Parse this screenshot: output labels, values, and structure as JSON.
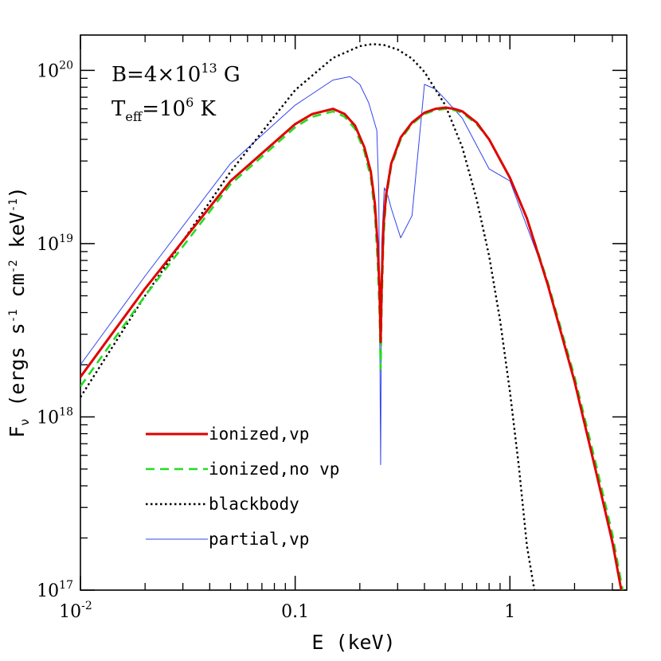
{
  "chart_data": {
    "type": "line",
    "xscale": "log",
    "yscale": "log",
    "xlim": [
      0.01,
      3.5
    ],
    "ylim": [
      1e+17,
      1.6e+20
    ],
    "xlabel": "E (keV)",
    "ylabel": {
      "main": "F",
      "sub": "ν",
      "units_open": " (ergs s",
      "exp1": "-1",
      "mid": " cm",
      "exp2": "-2",
      "mid2": " keV",
      "exp3": "-1",
      "close": ")"
    },
    "x_ticks": [
      {
        "value": 0.01,
        "label": "10",
        "exp": "-2"
      },
      {
        "value": 0.1,
        "label": "0.1",
        "exp": ""
      },
      {
        "value": 1,
        "label": "1",
        "exp": ""
      }
    ],
    "y_ticks": [
      {
        "value": 1e+17,
        "label": "10",
        "exp": "17"
      },
      {
        "value": 1e+18,
        "label": "10",
        "exp": "18"
      },
      {
        "value": 1e+19,
        "label": "10",
        "exp": "19"
      },
      {
        "value": 1e+20,
        "label": "10",
        "exp": "20"
      }
    ],
    "annotations": {
      "field": {
        "pre": "B=4×10",
        "exp": "13",
        "post": " G"
      },
      "teff": {
        "pre": "T",
        "sub": "eff",
        "mid": "=10",
        "exp": "6",
        "post": " K"
      }
    },
    "series": [
      {
        "name": "ionized,vp",
        "color": "#e00000",
        "style": "solid-thick",
        "x": [
          0.01,
          0.02,
          0.05,
          0.1,
          0.12,
          0.15,
          0.17,
          0.19,
          0.21,
          0.225,
          0.235,
          0.242,
          0.247,
          0.25,
          0.253,
          0.258,
          0.265,
          0.28,
          0.31,
          0.35,
          0.4,
          0.45,
          0.5,
          0.55,
          0.6,
          0.7,
          0.8,
          1.0,
          1.2,
          1.5,
          2.0,
          2.5,
          3.0,
          3.3
        ],
        "y": [
          1.7e+18,
          5.5e+18,
          2.3e+19,
          4.9e+19,
          5.6e+19,
          6e+19,
          5.6e+19,
          4.8e+19,
          3.6e+19,
          2.6e+19,
          1.7e+19,
          1e+19,
          5.5e+18,
          2.7e+18,
          6e+18,
          1.3e+19,
          1.9e+19,
          2.9e+19,
          4.1e+19,
          5e+19,
          5.7e+19,
          6e+19,
          6.1e+19,
          6e+19,
          5.8e+19,
          5e+19,
          4e+19,
          2.4e+19,
          1.4e+19,
          5.8e+18,
          1.6e+18,
          5e+17,
          1.9e+17,
          1e+17
        ]
      },
      {
        "name": "ionized,no vp",
        "color": "#22dd22",
        "style": "dashed",
        "x": [
          0.01,
          0.02,
          0.05,
          0.1,
          0.12,
          0.15,
          0.17,
          0.19,
          0.21,
          0.225,
          0.235,
          0.242,
          0.247,
          0.25,
          0.253,
          0.258,
          0.265,
          0.28,
          0.31,
          0.35,
          0.4,
          0.45,
          0.5,
          0.55,
          0.6,
          0.7,
          0.8,
          1.0,
          1.2,
          1.5,
          2.0,
          2.5,
          3.0,
          3.35
        ],
        "y": [
          1.5e+18,
          5e+18,
          2.2e+19,
          4.7e+19,
          5.4e+19,
          5.8e+19,
          5.4e+19,
          4.6e+19,
          3.4e+19,
          2.4e+19,
          1.5e+19,
          8e+18,
          4e+18,
          1.9e+18,
          4.5e+18,
          1.1e+19,
          1.8e+19,
          2.8e+19,
          4e+19,
          4.9e+19,
          5.6e+19,
          5.9e+19,
          6e+19,
          5.9e+19,
          5.7e+19,
          4.9e+19,
          4e+19,
          2.4e+19,
          1.4e+19,
          6e+18,
          1.7e+18,
          5.5e+17,
          2.1e+17,
          1e+17
        ]
      },
      {
        "name": "blackbody",
        "color": "#000000",
        "style": "dotted",
        "x": [
          0.01,
          0.02,
          0.05,
          0.1,
          0.15,
          0.2,
          0.23,
          0.26,
          0.3,
          0.35,
          0.4,
          0.5,
          0.6,
          0.7,
          0.8,
          0.9,
          1.0,
          1.1,
          1.2,
          1.3
        ],
        "y": [
          1.3e+18,
          5e+18,
          2.6e+19,
          7.7e+19,
          1.18e+20,
          1.38e+20,
          1.42e+20,
          1.4e+20,
          1.32e+20,
          1.17e+20,
          9.8e+19,
          6.3e+19,
          3.6e+19,
          1.8e+19,
          8.5e+18,
          3.6e+18,
          1.4e+18,
          5.2e+17,
          1.8e+17,
          1e+17
        ]
      },
      {
        "name": "partial,vp",
        "color": "#3344ee",
        "style": "solid-thin",
        "x": [
          0.01,
          0.02,
          0.05,
          0.1,
          0.15,
          0.18,
          0.2,
          0.22,
          0.24,
          0.245,
          0.25,
          0.253,
          0.26,
          0.27,
          0.28,
          0.31,
          0.35,
          0.4,
          0.45,
          0.5,
          0.6,
          0.8,
          1.0,
          1.5,
          2.0,
          2.5,
          3.0,
          3.3
        ],
        "y": [
          2e+18,
          6.5e+18,
          2.9e+19,
          6.3e+19,
          8.8e+19,
          9.2e+19,
          8.3e+19,
          6.5e+19,
          4.5e+19,
          2e+19,
          5.3e+17,
          1e+19,
          2.1e+19,
          1.9e+19,
          1.6e+19,
          1.08e+19,
          1.45e+19,
          8.3e+19,
          7.8e+19,
          6.8e+19,
          5.3e+19,
          2.7e+19,
          2.3e+19,
          6e+18,
          1.6e+18,
          5e+17,
          1.8e+17,
          1e+17
        ]
      }
    ],
    "legend": {
      "placement": "lower-left",
      "items": [
        "ionized,vp",
        "ionized,no vp",
        "blackbody",
        "partial,vp"
      ]
    }
  }
}
